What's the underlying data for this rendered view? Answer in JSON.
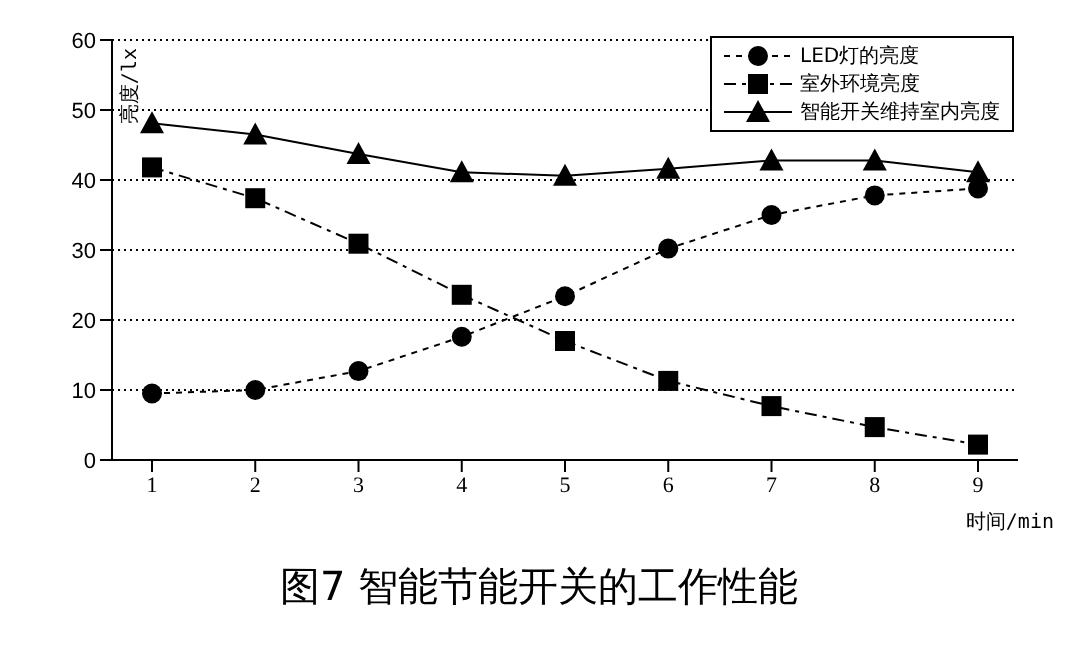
{
  "chart_data": {
    "type": "line",
    "title": "图7 智能节能开关的工作性能",
    "xlabel": "时间/min",
    "ylabel": "亮度/lx",
    "categories": [
      "1",
      "2",
      "3",
      "4",
      "5",
      "6",
      "7",
      "8",
      "9"
    ],
    "series": [
      {
        "name": "LED灯的亮度",
        "color": "#000000",
        "marker": "circle",
        "line_style": "dotted",
        "values": [
          9.5,
          10,
          12.7,
          17.6,
          23.4,
          30.2,
          35,
          37.8,
          38.8
        ]
      },
      {
        "name": "室外环境亮度",
        "color": "#000000",
        "marker": "square",
        "line_style": "dashed",
        "values": [
          41.8,
          37.4,
          30.9,
          23.6,
          17,
          11.3,
          7.7,
          4.7,
          2.2
        ]
      },
      {
        "name": "智能开关维持室内亮度",
        "color": "#000000",
        "marker": "triangle",
        "line_style": "solid",
        "values": [
          48.1,
          46.5,
          43.7,
          41.1,
          40.6,
          41.6,
          42.8,
          42.8,
          41.1
        ]
      }
    ],
    "ylim": [
      0,
      60
    ],
    "yticks": [
      0,
      10,
      20,
      30,
      40,
      50,
      60
    ],
    "grid": "y",
    "legend": "top right"
  }
}
